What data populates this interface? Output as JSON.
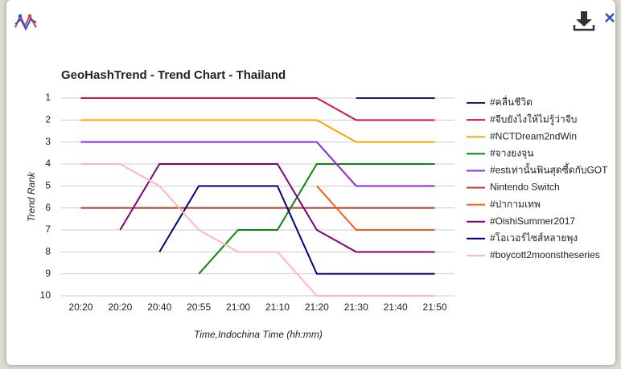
{
  "chart_data": {
    "type": "line",
    "title": "GeoHashTrend - Trend Chart - Thailand",
    "y_label": "Trend Rank",
    "x_label": "Time,Indochina Time (hh:mm)",
    "categories": [
      "20:20",
      "20:20",
      "20:40",
      "20:55",
      "21:00",
      "21:10",
      "21:20",
      "21:30",
      "21:40",
      "21:50"
    ],
    "ylim": [
      1,
      10
    ],
    "y_reversed": true,
    "yticks": [
      1,
      2,
      3,
      4,
      5,
      6,
      7,
      8,
      9,
      10
    ],
    "grid": true,
    "legend": "right",
    "series": [
      {
        "name": "#คลื่นชีวิต",
        "color": "#1c1c80",
        "values": [
          null,
          null,
          null,
          null,
          null,
          null,
          null,
          1,
          1,
          1
        ]
      },
      {
        "name": "#จีบยังไงให้ไม่รู้ว่าจีบ",
        "color": "#dc143c",
        "values": [
          1,
          1,
          1,
          1,
          1,
          1,
          1,
          2,
          2,
          2
        ]
      },
      {
        "name": "#NCTDream2ndWin",
        "color": "#ffa500",
        "values": [
          2,
          2,
          2,
          2,
          2,
          2,
          2,
          3,
          3,
          3
        ]
      },
      {
        "name": "#จางยงจุน",
        "color": "#0a8a0a",
        "values": [
          null,
          null,
          null,
          9,
          7,
          7,
          4,
          4,
          4,
          4
        ]
      },
      {
        "name": "#estเท่านั้นฟินสุดซี้ดกับGOT",
        "color": "#8a2be2",
        "values": [
          3,
          3,
          3,
          3,
          3,
          3,
          3,
          5,
          5,
          5
        ]
      },
      {
        "name": "Nintendo Switch",
        "color": "#b5372a",
        "values": [
          6,
          6,
          6,
          6,
          6,
          6,
          6,
          6,
          6,
          6
        ]
      },
      {
        "name": "#ปากามเทพ",
        "color": "#ff5a14",
        "values": [
          null,
          null,
          null,
          null,
          null,
          null,
          5,
          7,
          7,
          7
        ]
      },
      {
        "name": "#OishiSummer2017",
        "color": "#800080",
        "values": [
          null,
          7,
          4,
          4,
          4,
          4,
          7,
          8,
          8,
          8
        ]
      },
      {
        "name": "#โอเวอร์ไซส์หลายพุง",
        "color": "#000080",
        "values": [
          null,
          null,
          8,
          5,
          5,
          5,
          9,
          9,
          9,
          9
        ]
      },
      {
        "name": "#boycott2moonstheseries",
        "color": "#ffb6c1",
        "values": [
          4,
          4,
          5,
          7,
          8,
          8,
          10,
          10,
          10,
          10
        ]
      }
    ]
  }
}
